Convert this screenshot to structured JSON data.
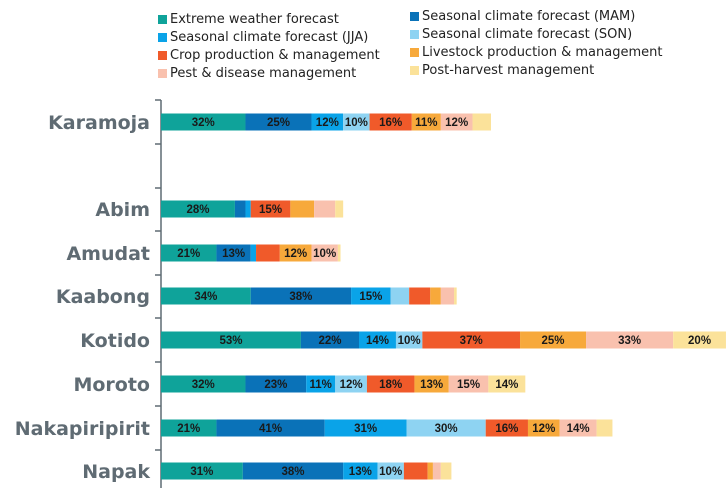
{
  "chart_data": {
    "type": "bar",
    "orientation": "horizontal",
    "stacked": true,
    "grid": false,
    "legend_position": "top",
    "categories": [
      "Karamoja",
      "",
      "Abim",
      "Amudat",
      "Kaabong",
      "Kotido",
      "Moroto",
      "Nakapiripirit",
      "Napak"
    ],
    "series": [
      {
        "name": "Extreme weather forecast",
        "color": "#0fa39a",
        "values": [
          32,
          null,
          28,
          21,
          34,
          53,
          32,
          21,
          31
        ]
      },
      {
        "name": "Seasonal climate forecast (MAM)",
        "color": "#0a72b8",
        "values": [
          25,
          null,
          4,
          13,
          38,
          22,
          23,
          41,
          38
        ]
      },
      {
        "name": "Seasonal climate forecast (JJA)",
        "color": "#0aa3e8",
        "values": [
          12,
          null,
          2,
          2,
          15,
          14,
          11,
          31,
          13
        ]
      },
      {
        "name": "Seasonal climate forecast (SON)",
        "color": "#8ed3f2",
        "values": [
          10,
          null,
          0,
          0,
          7,
          10,
          12,
          30,
          10
        ]
      },
      {
        "name": "Crop production & management",
        "color": "#f05a2a",
        "values": [
          16,
          null,
          15,
          9,
          8,
          37,
          18,
          16,
          9
        ]
      },
      {
        "name": "Livestock production & management",
        "color": "#f7a93b",
        "values": [
          11,
          null,
          9,
          12,
          4,
          25,
          13,
          12,
          2
        ]
      },
      {
        "name": "Pest & disease management",
        "color": "#f9c1ae",
        "values": [
          12,
          null,
          8,
          10,
          5,
          33,
          15,
          14,
          3
        ]
      },
      {
        "name": "Post-harvest management",
        "color": "#fbe29a",
        "values": [
          7,
          null,
          3,
          1,
          1,
          20,
          14,
          6,
          4
        ]
      }
    ],
    "data_labels": [
      [
        "32%",
        "25%",
        "12%",
        "10%",
        "16%",
        "11%",
        "12%",
        ""
      ],
      [
        "",
        "",
        "",
        "",
        "",
        "",
        "",
        ""
      ],
      [
        "28%",
        "",
        "",
        "",
        "15%",
        "",
        "",
        ""
      ],
      [
        "21%",
        "13%",
        "",
        "",
        "",
        "12%",
        "10%",
        ""
      ],
      [
        "34%",
        "38%",
        "15%",
        "",
        "",
        "",
        "",
        ""
      ],
      [
        "53%",
        "22%",
        "14%",
        "10%",
        "37%",
        "25%",
        "33%",
        "20%"
      ],
      [
        "32%",
        "23%",
        "11%",
        "12%",
        "18%",
        "13%",
        "15%",
        "14%"
      ],
      [
        "21%",
        "41%",
        "31%",
        "30%",
        "16%",
        "12%",
        "14%",
        ""
      ],
      [
        "31%",
        "38%",
        "13%",
        "10%",
        "",
        "",
        "",
        ""
      ]
    ],
    "title": "",
    "xlabel": "",
    "ylabel": ""
  }
}
